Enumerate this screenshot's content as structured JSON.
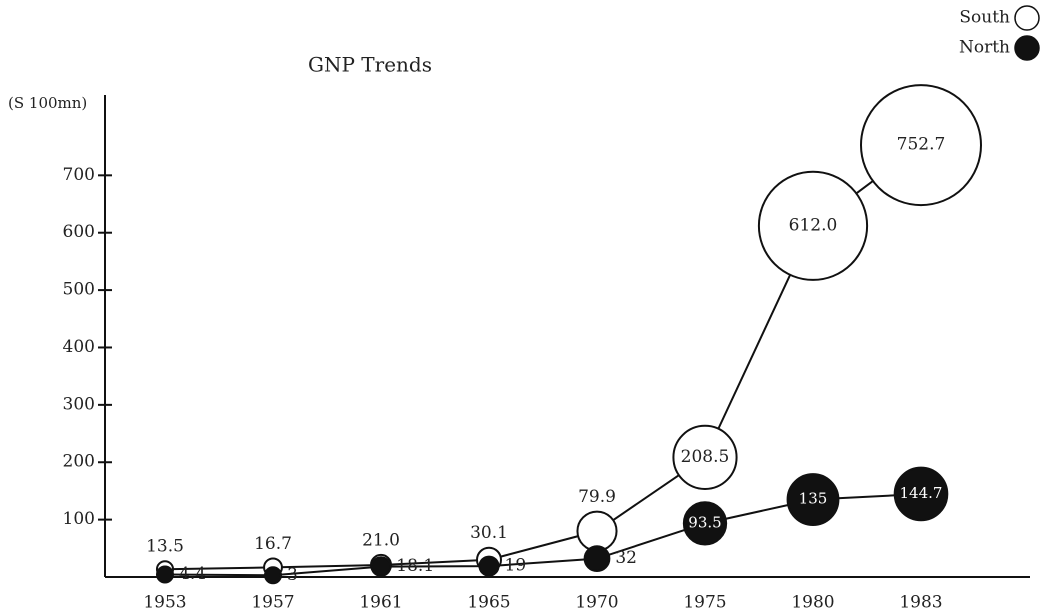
{
  "chart_data": {
    "type": "line",
    "title": "GNP Trends",
    "y_label": "(S 100mn)",
    "categories": [
      "1953",
      "1957",
      "1961",
      "1965",
      "1970",
      "1975",
      "1980",
      "1983"
    ],
    "series": [
      {
        "name": "South",
        "color": "#ffffff",
        "values": [
          13.5,
          16.7,
          21.0,
          30.1,
          79.9,
          208.5,
          612.0,
          752.7
        ],
        "value_labels": [
          "13.5",
          "16.7",
          "21.0",
          "30.1",
          "79.9",
          "208.5",
          "612.0",
          "752.7"
        ]
      },
      {
        "name": "North",
        "color": "#111111",
        "values": [
          4.4,
          3,
          18.1,
          19,
          32,
          93.5,
          135,
          144.7
        ]
      }
    ],
    "ylim": [
      0,
      840
    ],
    "yticks": [
      100,
      200,
      300,
      400,
      500,
      600,
      700
    ],
    "legend": "top-right",
    "grid": false
  }
}
